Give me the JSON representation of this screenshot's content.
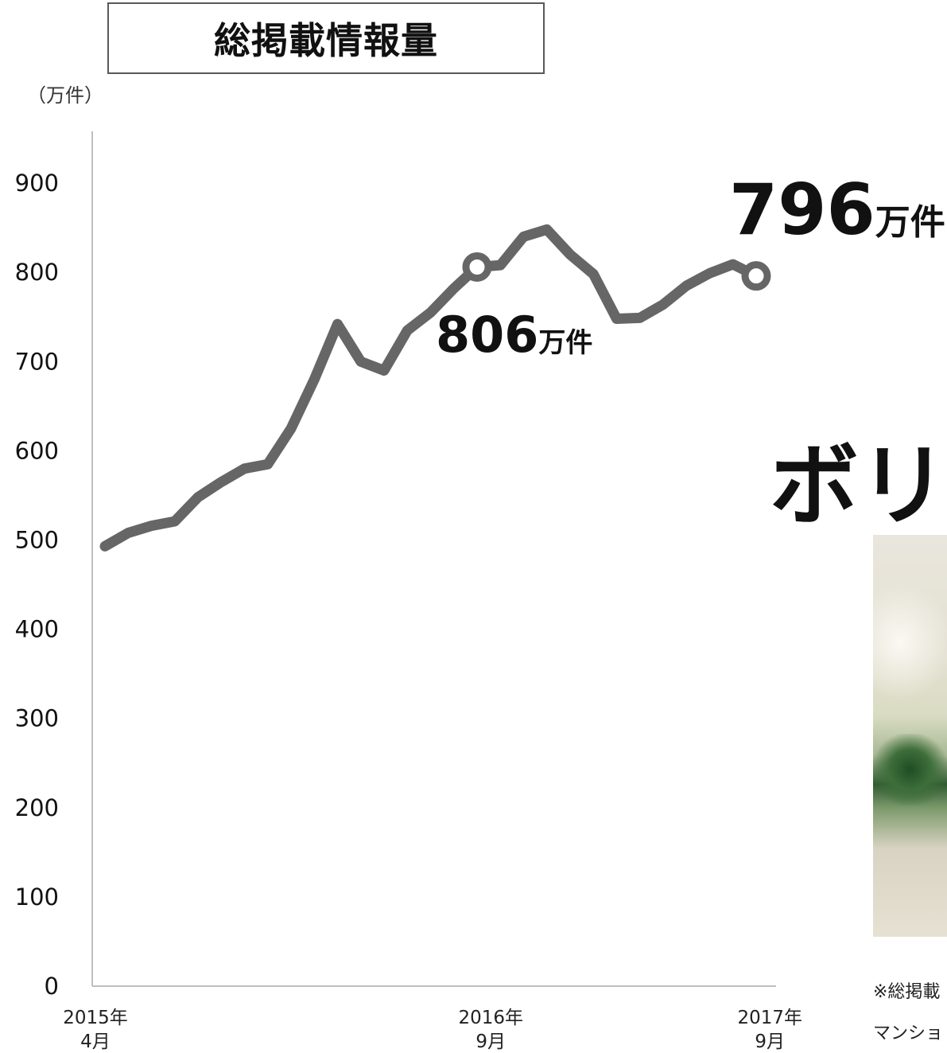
{
  "header": {
    "title": "総掲載情報量",
    "unit": "（万件）"
  },
  "callouts": {
    "mid_value": "806",
    "mid_unit": "万件",
    "end_value": "796",
    "end_unit": "万件"
  },
  "side": {
    "heading": "ボリ",
    "footnote_1": "※総掲載",
    "footnote_2": "マンショ"
  },
  "chart_data": {
    "type": "line",
    "title": "総掲載情報量",
    "ylabel": "（万件）",
    "xlabel": "",
    "ylim": [
      0,
      950
    ],
    "yticks": [
      0,
      100,
      200,
      300,
      400,
      500,
      600,
      700,
      800,
      900
    ],
    "x_tick_labels": [
      {
        "index": 0,
        "line1": "2015年",
        "line2": "4月"
      },
      {
        "index": 17,
        "line1": "2016年",
        "line2": "9月"
      },
      {
        "index": 29,
        "line1": "2017年",
        "line2": "9月"
      }
    ],
    "grid": false,
    "legend": "none",
    "line_color": "#666666",
    "series": [
      {
        "values": [
          493,
          508,
          516,
          521,
          548,
          565,
          580,
          585,
          625,
          680,
          742,
          700,
          690,
          735,
          755,
          782,
          806,
          808,
          840,
          848,
          820,
          798,
          748,
          749,
          764,
          785,
          799,
          809,
          796
        ]
      }
    ],
    "highlights": [
      {
        "index": 16,
        "value": 806
      },
      {
        "index": 28,
        "value": 796
      }
    ]
  }
}
